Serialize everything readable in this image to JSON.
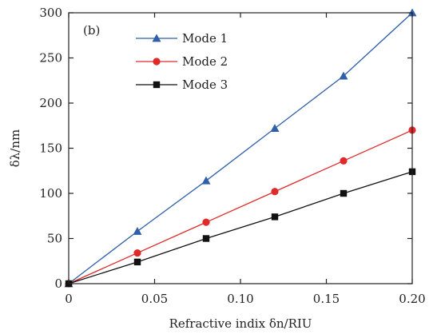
{
  "chart_data": {
    "type": "line",
    "panel_label": "(b)",
    "xlabel": "Refractive indix δn/RIU",
    "ylabel": "δλ/nm",
    "xlim": [
      0,
      0.2
    ],
    "ylim": [
      0,
      300
    ],
    "xticks": [
      0,
      0.05,
      0.1,
      0.15,
      0.2
    ],
    "xtick_labels": [
      "0",
      "0.05",
      "0.10",
      "0.15",
      "0.20"
    ],
    "yticks": [
      0,
      50,
      100,
      150,
      200,
      250,
      300
    ],
    "ytick_labels": [
      "0",
      "50",
      "100",
      "150",
      "200",
      "250",
      "300"
    ],
    "grid": false,
    "legend_position": "top-left",
    "x": [
      0,
      0.04,
      0.08,
      0.12,
      0.16,
      0.2
    ],
    "series": [
      {
        "name": "Mode 1",
        "color": "#2f5fa8",
        "marker": "triangle",
        "values": [
          0,
          58,
          114,
          172,
          230,
          300
        ]
      },
      {
        "name": "Mode 2",
        "color": "#e02a2a",
        "marker": "circle",
        "values": [
          0,
          34,
          68,
          102,
          136,
          170
        ]
      },
      {
        "name": "Mode 3",
        "color": "#111111",
        "marker": "square",
        "values": [
          0,
          24,
          50,
          74,
          100,
          124
        ]
      }
    ]
  }
}
